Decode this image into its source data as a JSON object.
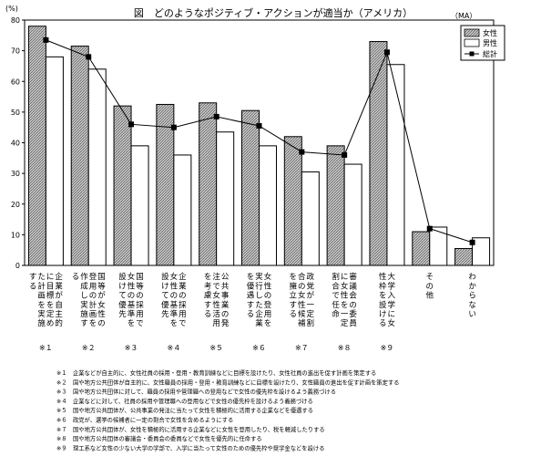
{
  "chart_data": {
    "type": "bar",
    "title": "図　どのようなポジティブ・アクションが適当か（アメリカ）",
    "unit_label": "(%)",
    "ma_label": "（MA）",
    "ylim": [
      0,
      80
    ],
    "yticks": [
      0,
      10,
      20,
      30,
      40,
      50,
      60,
      70,
      80
    ],
    "legend_position": "top-right",
    "categories": [
      "企業が自主的な目標を定めた計画の実施",
      "女性の登用に関する計画を国等が提出",
      "女性の採用・登用の基準等を設けて優先",
      "女性の採用に関する計画の基準を設けて優先",
      "公共事業の発注に当たって企業の女性活用を考慮",
      "女性の登用の計画等を作成した企業を優遇",
      "政党が一定の割合の女性候補を擁立",
      "審議会等の委員に女性を一定割合で任命",
      "大学入学に女性枠を設ける",
      "その他",
      "わからない"
    ],
    "category_lines": [
      [
        "企業が自主的",
        "に目標を定め",
        "た計画を実施",
        "する"
      ],
      [
        "国等が女性の",
        "登用の計画を",
        "作成し実施す",
        "る"
      ],
      [
        "国等の採用で",
        "女性の基準を",
        "設けて優先"
      ],
      [
        "企業の採用で",
        "女性の基準を",
        "設けて優先"
      ],
      [
        "公共事業の発",
        "注で女性活用",
        "を考慮する"
      ],
      [
        "女性の登用を",
        "実行した企業",
        "を優遇する"
      ],
      [
        "政党が一定割",
        "合の女性候補",
        "を擁立する"
      ],
      [
        "審議会の委員",
        "に女性を一定",
        "割合で任命"
      ],
      [
        "大学入学に女",
        "性枠を設ける"
      ],
      [
        "その他"
      ],
      [
        "わからない"
      ]
    ],
    "category_notes": [
      "※１",
      "※２",
      "※３",
      "※４",
      "※５",
      "※６",
      "※７",
      "※８",
      "※９",
      "",
      ""
    ],
    "series": [
      {
        "name": "女性",
        "type": "bar",
        "color": "#9a9a9a",
        "values": [
          78,
          71.5,
          52,
          52.5,
          53,
          50.5,
          42,
          39,
          73,
          11,
          5.5
        ]
      },
      {
        "name": "男性",
        "type": "bar",
        "color": "#ffffff",
        "values": [
          68,
          64,
          39,
          36,
          43.5,
          39,
          30.5,
          33,
          65.5,
          12.5,
          9
        ]
      },
      {
        "name": "総計",
        "type": "line",
        "color": "#000000",
        "values": [
          73.5,
          68,
          46,
          45,
          48.5,
          45.5,
          37,
          36,
          69.5,
          12,
          7.5
        ]
      }
    ]
  },
  "footnotes": [
    {
      "mark": "※１",
      "text": "企業などが自主的に、女性社員の採用・登用・教育訓練などに目標を設けたり、女性社員の進出を促す計画を策定する"
    },
    {
      "mark": "※２",
      "text": "国や地方公共団体が自主的に、女性職員の採用・登用・教育訓練などに目標を設けたり、女性職員の進出を促す計画を策定する"
    },
    {
      "mark": "※３",
      "text": "国や地方公共団体に対して、職員の採用や管理職への登用などで女性の優先枠を設けるよう義務づける"
    },
    {
      "mark": "※４",
      "text": "企業などに対して、社員の採用や管理職への登用などで女性の優先枠を設けるよう義務づける"
    },
    {
      "mark": "※５",
      "text": "国や地方公共団体が、公共事業の発注に当たって女性を積極的に活用する企業などを優遇する"
    },
    {
      "mark": "※６",
      "text": "政党が、選挙の候補者に一定の割合で女性を含めるようにする"
    },
    {
      "mark": "※７",
      "text": "国や地方公共団体が、女性を積極的に活用する企業などに女性を登用したり、税を軽減したりする"
    },
    {
      "mark": "※８",
      "text": "国や地方公共団体の審議会・委員会の委員などで女性を優先的に任命する"
    },
    {
      "mark": "※９",
      "text": "理工系など女性の少ない大学の学部で、入学に当たって女性のための優先枠や奨学金などを設ける"
    }
  ]
}
